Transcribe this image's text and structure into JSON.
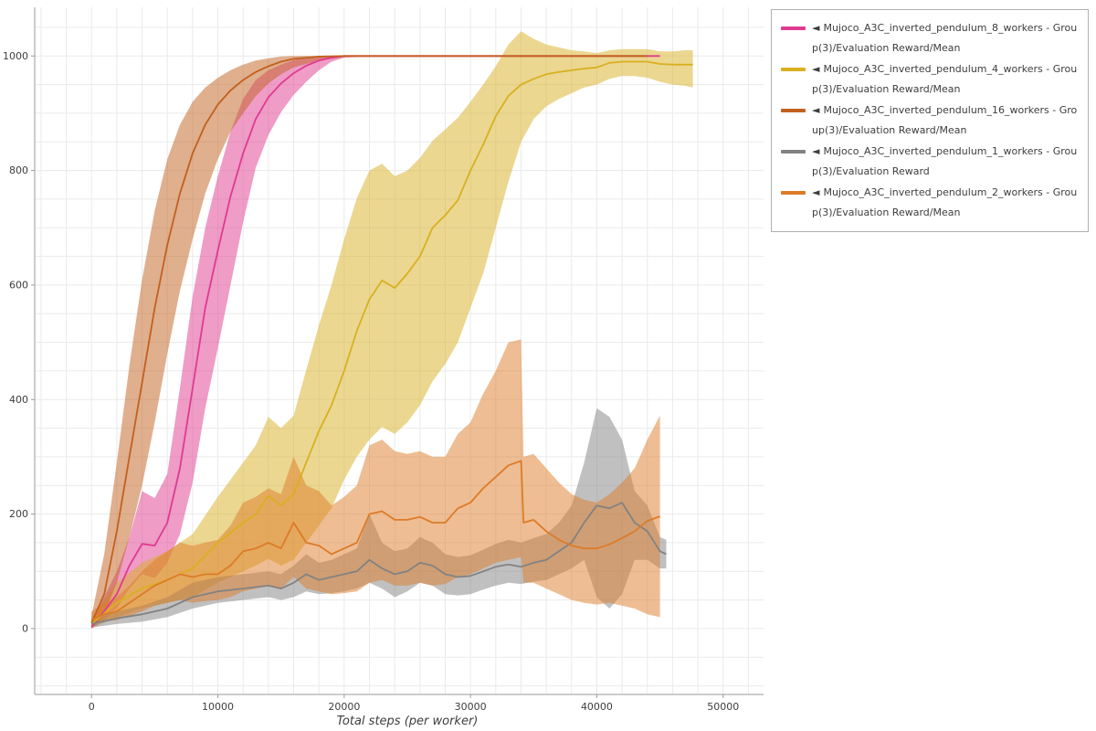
{
  "legend": {
    "marker": "◄",
    "position": "top-right"
  },
  "chart_data": {
    "type": "line",
    "title": "",
    "xlabel": "Total steps (per worker)",
    "ylabel": "",
    "xlim": [
      -4500,
      53200
    ],
    "ylim": [
      -115,
      1085
    ],
    "x_ticks": [
      0,
      10000,
      20000,
      30000,
      40000,
      50000
    ],
    "y_ticks": [
      0,
      200,
      400,
      600,
      800,
      1000
    ],
    "grid": {
      "x_step": 2000,
      "y_step": 50,
      "color": "#eaeaea"
    },
    "legend_position": "top-right",
    "series": [
      {
        "id": "s8",
        "name": "Mujoco_A3C_inverted_pendulum_8_workers - Group(3)/Evaluation Reward/Mean",
        "color": "#df3a90",
        "band_opacity": 0.5,
        "x": [
          0,
          1000,
          2000,
          3000,
          4000,
          5000,
          6000,
          7000,
          8000,
          9000,
          10000,
          11000,
          12000,
          13000,
          14000,
          15000,
          16000,
          17000,
          18000,
          19000,
          20000,
          22000,
          24000,
          26000,
          28000,
          30000,
          32000,
          34000,
          36000,
          38000,
          40000,
          42000,
          44000,
          45000
        ],
        "mean": [
          3,
          30,
          60,
          110,
          148,
          145,
          185,
          280,
          420,
          560,
          660,
          755,
          830,
          890,
          928,
          952,
          970,
          983,
          992,
          997,
          1000,
          1000,
          1000,
          1000,
          1000,
          1000,
          1000,
          1000,
          1000,
          1000,
          1000,
          1000,
          1000,
          1000
        ],
        "lo": [
          0,
          15,
          35,
          70,
          95,
          88,
          115,
          165,
          255,
          385,
          490,
          600,
          710,
          805,
          862,
          902,
          932,
          955,
          975,
          990,
          997,
          1000,
          1000,
          1000,
          1000,
          1000,
          1000,
          1000,
          1000,
          1000,
          1000,
          1000,
          1000,
          1000
        ],
        "hi": [
          10,
          55,
          100,
          160,
          240,
          228,
          270,
          420,
          580,
          700,
          790,
          868,
          925,
          958,
          975,
          985,
          993,
          998,
          1000,
          1000,
          1000,
          1000,
          1000,
          1000,
          1000,
          1000,
          1000,
          1000,
          1000,
          1000,
          1000,
          1000,
          1000,
          1000
        ]
      },
      {
        "id": "s4",
        "name": "Mujoco_A3C_inverted_pendulum_4_workers - Group(3)/Evaluation Reward/Mean",
        "color": "#d8b021",
        "band_opacity": 0.5,
        "x": [
          0,
          2000,
          4000,
          6000,
          8000,
          10000,
          12000,
          13000,
          14000,
          15000,
          16000,
          17000,
          18000,
          19000,
          20000,
          21000,
          22000,
          23000,
          24000,
          25000,
          26000,
          27000,
          28000,
          29000,
          30000,
          31000,
          32000,
          33000,
          34000,
          35000,
          36000,
          37000,
          38000,
          39000,
          40000,
          41000,
          42000,
          43000,
          44000,
          45000,
          46000,
          47000,
          47600
        ],
        "mean": [
          8,
          45,
          70,
          85,
          105,
          150,
          185,
          200,
          232,
          215,
          235,
          290,
          345,
          390,
          450,
          520,
          575,
          608,
          595,
          620,
          650,
          700,
          722,
          748,
          800,
          845,
          895,
          930,
          950,
          960,
          968,
          972,
          975,
          978,
          980,
          988,
          990,
          990,
          990,
          986,
          985,
          985,
          985
        ],
        "lo": [
          0,
          20,
          35,
          45,
          55,
          80,
          100,
          110,
          122,
          110,
          120,
          150,
          180,
          210,
          260,
          300,
          330,
          352,
          340,
          360,
          390,
          432,
          462,
          500,
          560,
          620,
          700,
          780,
          850,
          890,
          912,
          925,
          935,
          945,
          950,
          960,
          965,
          965,
          962,
          955,
          950,
          948,
          945
        ],
        "hi": [
          18,
          80,
          115,
          135,
          165,
          230,
          290,
          320,
          370,
          350,
          372,
          452,
          530,
          600,
          680,
          752,
          800,
          812,
          790,
          800,
          822,
          852,
          872,
          892,
          920,
          950,
          982,
          1020,
          1043,
          1030,
          1020,
          1015,
          1010,
          1008,
          1005,
          1010,
          1012,
          1012,
          1012,
          1008,
          1008,
          1010,
          1010
        ]
      },
      {
        "id": "s16",
        "name": "Mujoco_A3C_inverted_pendulum_16_workers - Group(3)/Evaluation Reward/Mean",
        "color": "#c2601d",
        "band_opacity": 0.5,
        "x": [
          0,
          1000,
          2000,
          3000,
          4000,
          5000,
          6000,
          7000,
          8000,
          9000,
          10000,
          11000,
          12000,
          13000,
          14000,
          15000,
          16000,
          18000,
          20000,
          24000,
          28000,
          32000,
          36000,
          40000,
          44000
        ],
        "mean": [
          10,
          60,
          170,
          300,
          430,
          560,
          670,
          760,
          830,
          880,
          915,
          940,
          958,
          972,
          982,
          990,
          995,
          999,
          1000,
          1000,
          1000,
          1000,
          1000,
          1000,
          1000
        ],
        "lo": [
          0,
          25,
          80,
          160,
          250,
          360,
          480,
          590,
          680,
          760,
          820,
          868,
          900,
          930,
          952,
          968,
          980,
          992,
          998,
          1000,
          1000,
          1000,
          1000,
          1000,
          1000
        ],
        "hi": [
          22,
          130,
          290,
          460,
          610,
          730,
          820,
          880,
          920,
          945,
          962,
          975,
          985,
          992,
          996,
          999,
          1000,
          1000,
          1000,
          1000,
          1000,
          1000,
          1000,
          1000,
          1000
        ]
      },
      {
        "id": "s1",
        "name": "Mujoco_A3C_inverted_pendulum_1_workers - Group(3)/Evaluation Reward",
        "color": "#828282",
        "band_opacity": 0.5,
        "x": [
          0,
          2000,
          4000,
          6000,
          8000,
          10000,
          12000,
          14000,
          15000,
          16000,
          17000,
          18000,
          19000,
          20000,
          21000,
          22000,
          23000,
          24000,
          25000,
          26000,
          27000,
          28000,
          29000,
          30000,
          31000,
          32000,
          33000,
          34000,
          35000,
          36000,
          37000,
          38000,
          39000,
          40000,
          41000,
          42000,
          43000,
          44000,
          45000,
          45500
        ],
        "mean": [
          8,
          18,
          25,
          35,
          55,
          65,
          70,
          75,
          70,
          80,
          95,
          85,
          90,
          95,
          100,
          120,
          105,
          95,
          100,
          115,
          110,
          95,
          90,
          92,
          100,
          108,
          112,
          108,
          115,
          120,
          135,
          150,
          185,
          215,
          210,
          220,
          185,
          170,
          135,
          130
        ],
        "lo": [
          2,
          8,
          12,
          20,
          35,
          45,
          50,
          55,
          50,
          55,
          65,
          60,
          62,
          65,
          70,
          80,
          70,
          55,
          65,
          80,
          75,
          60,
          58,
          60,
          68,
          75,
          80,
          78,
          82,
          85,
          95,
          105,
          120,
          55,
          35,
          60,
          120,
          120,
          105,
          105
        ],
        "hi": [
          16,
          30,
          40,
          55,
          80,
          90,
          95,
          100,
          95,
          110,
          130,
          115,
          120,
          130,
          140,
          200,
          150,
          135,
          140,
          160,
          150,
          130,
          125,
          128,
          138,
          148,
          155,
          150,
          158,
          165,
          185,
          215,
          290,
          385,
          370,
          330,
          240,
          215,
          160,
          155
        ]
      },
      {
        "id": "s2",
        "name": "Mujoco_A3C_inverted_pendulum_2_workers - Group(3)/Evaluation Reward/Mean",
        "color": "#dd7b28",
        "band_opacity": 0.5,
        "x": [
          0,
          1000,
          2000,
          3000,
          4000,
          5000,
          6000,
          7000,
          8000,
          9000,
          10000,
          11000,
          12000,
          13000,
          14000,
          15000,
          16000,
          17000,
          18000,
          19000,
          20000,
          21000,
          22000,
          23000,
          24000,
          25000,
          26000,
          27000,
          28000,
          29000,
          30000,
          31000,
          32000,
          33000,
          34000,
          34200,
          35000,
          36000,
          37000,
          38000,
          39000,
          40000,
          41000,
          42000,
          43000,
          44000,
          45000
        ],
        "mean": [
          15,
          25,
          30,
          45,
          60,
          75,
          85,
          95,
          90,
          95,
          95,
          110,
          135,
          140,
          150,
          140,
          185,
          150,
          145,
          130,
          140,
          150,
          200,
          205,
          190,
          190,
          195,
          185,
          185,
          210,
          220,
          245,
          265,
          285,
          293,
          185,
          190,
          170,
          155,
          145,
          140,
          140,
          147,
          158,
          170,
          188,
          196
        ],
        "lo": [
          5,
          12,
          15,
          22,
          30,
          40,
          45,
          50,
          45,
          48,
          50,
          55,
          65,
          70,
          75,
          70,
          90,
          70,
          65,
          60,
          62,
          65,
          80,
          85,
          75,
          75,
          80,
          75,
          78,
          90,
          95,
          105,
          115,
          120,
          125,
          80,
          80,
          70,
          60,
          50,
          45,
          42,
          45,
          40,
          35,
          25,
          20
        ],
        "hi": [
          30,
          45,
          55,
          75,
          100,
          120,
          135,
          150,
          145,
          150,
          155,
          180,
          220,
          230,
          245,
          235,
          300,
          250,
          240,
          215,
          230,
          250,
          320,
          330,
          310,
          305,
          310,
          300,
          300,
          340,
          360,
          410,
          450,
          500,
          505,
          300,
          305,
          280,
          255,
          235,
          225,
          220,
          235,
          255,
          280,
          330,
          372
        ]
      }
    ]
  }
}
